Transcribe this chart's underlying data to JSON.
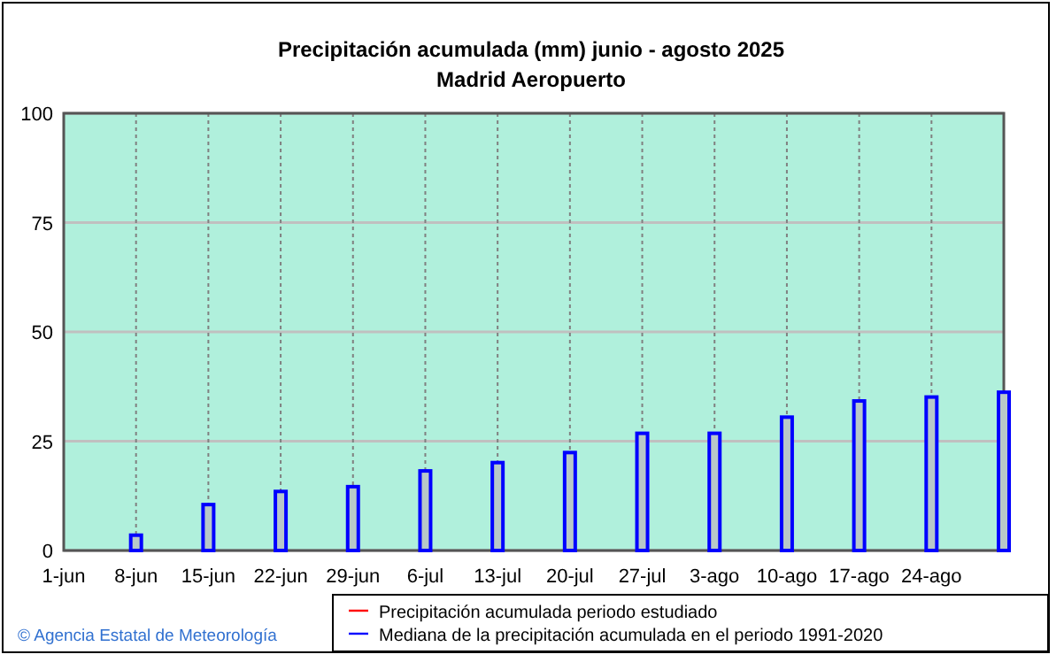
{
  "chart_data": {
    "type": "bar",
    "title": "Precipitación acumulada (mm) junio - agosto 2025",
    "subtitle": "Madrid Aeropuerto",
    "categories": [
      "1-jun",
      "8-jun",
      "15-jun",
      "22-jun",
      "29-jun",
      "6-jul",
      "13-jul",
      "20-jul",
      "27-jul",
      "3-ago",
      "10-ago",
      "17-ago",
      "24-ago",
      null
    ],
    "series": [
      {
        "name": "Precipitación acumulada periodo estudiado",
        "color": "#ff0000",
        "type": "line",
        "values": [
          null,
          null,
          null,
          null,
          null,
          null,
          null,
          null,
          null,
          null,
          null,
          null,
          null,
          null
        ]
      },
      {
        "name": "Mediana de la precipitación acumulada en el periodo 1991-2020",
        "color": "#0000ff",
        "values": [
          0,
          3.5,
          10.5,
          13.5,
          14.6,
          18.2,
          20.1,
          22.4,
          26.8,
          26.8,
          30.5,
          34.2,
          35.1,
          36.2
        ]
      }
    ],
    "ylim": [
      0,
      100
    ],
    "yticks": [
      0,
      25,
      50,
      75,
      100
    ],
    "grid": true,
    "legend": "bottom",
    "annotations": [
      "© Agencia Estatal de Meteorología"
    ]
  }
}
